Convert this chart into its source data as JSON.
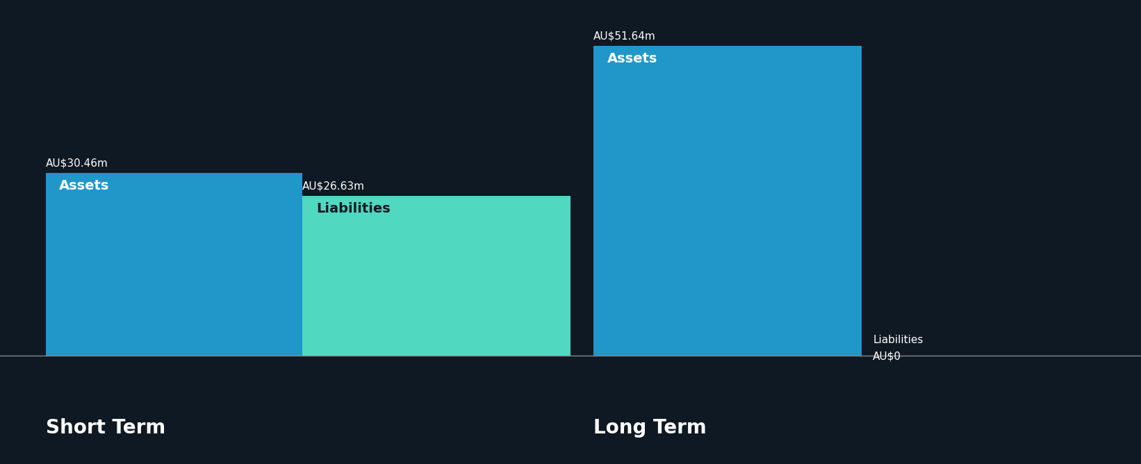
{
  "background_color": "#0f1923",
  "short_term": {
    "assets_value": 30.46,
    "liabilities_value": 26.63,
    "assets_label": "Assets",
    "liabilities_label": "Liabilities",
    "assets_color": "#2196c9",
    "liabilities_color": "#50d8c0",
    "title": "Short Term"
  },
  "long_term": {
    "assets_value": 51.64,
    "liabilities_value": 0.0,
    "assets_label": "Assets",
    "liabilities_label": "Liabilities",
    "assets_color": "#2196c9",
    "liabilities_color": "#50d8c0",
    "title": "Long Term"
  },
  "y_max": 57.0,
  "text_color": "#ffffff",
  "title_fontsize": 20,
  "value_fontsize": 11,
  "bar_label_fontsize": 14,
  "liab_label_fontsize": 11
}
